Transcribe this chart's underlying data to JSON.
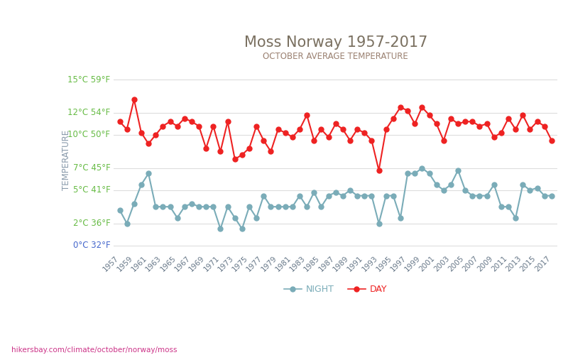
{
  "title": "Moss Norway 1957-2017",
  "subtitle": "OCTOBER AVERAGE TEMPERATURE",
  "ylabel": "TEMPERATURE",
  "background_color": "#ffffff",
  "title_color": "#7a7060",
  "subtitle_color": "#9a8070",
  "ylabel_color": "#8899aa",
  "yticks_celsius": [
    0,
    2,
    5,
    7,
    10,
    12,
    15
  ],
  "yticks_fahrenheit": [
    32,
    36,
    41,
    45,
    50,
    54,
    59
  ],
  "ytick_color_green": "#66bb44",
  "ytick_color_blue": "#4466cc",
  "grid_color": "#dddddd",
  "years": [
    1957,
    1958,
    1959,
    1960,
    1961,
    1962,
    1963,
    1964,
    1965,
    1966,
    1967,
    1968,
    1969,
    1970,
    1971,
    1972,
    1973,
    1974,
    1975,
    1976,
    1977,
    1978,
    1979,
    1980,
    1981,
    1982,
    1983,
    1984,
    1985,
    1986,
    1987,
    1988,
    1989,
    1990,
    1991,
    1992,
    1993,
    1994,
    1995,
    1996,
    1997,
    1998,
    1999,
    2000,
    2001,
    2002,
    2003,
    2004,
    2005,
    2006,
    2007,
    2008,
    2009,
    2010,
    2011,
    2012,
    2013,
    2014,
    2015,
    2016,
    2017
  ],
  "day_values": [
    11.2,
    10.5,
    13.2,
    10.2,
    9.2,
    10.0,
    10.8,
    11.2,
    10.8,
    11.5,
    11.2,
    10.8,
    8.8,
    10.8,
    8.5,
    11.2,
    7.8,
    8.2,
    8.8,
    10.8,
    9.5,
    8.5,
    10.5,
    10.2,
    9.8,
    10.5,
    11.8,
    9.5,
    10.5,
    9.8,
    11.0,
    10.5,
    9.5,
    10.5,
    10.2,
    9.5,
    6.8,
    10.5,
    11.5,
    12.5,
    12.2,
    11.0,
    12.5,
    11.8,
    11.0,
    9.5,
    11.5,
    11.0,
    11.2,
    11.2,
    10.8,
    11.0,
    9.8,
    10.2,
    11.5,
    10.5,
    11.8,
    10.5,
    11.2,
    10.8,
    9.5
  ],
  "night_values": [
    3.2,
    2.0,
    3.8,
    5.5,
    6.5,
    3.5,
    3.5,
    3.5,
    2.5,
    3.5,
    3.8,
    3.5,
    3.5,
    3.5,
    1.5,
    3.5,
    2.5,
    1.5,
    3.5,
    2.5,
    4.5,
    3.5,
    3.5,
    3.5,
    3.5,
    4.5,
    3.5,
    4.8,
    3.5,
    4.5,
    4.8,
    4.5,
    5.0,
    4.5,
    4.5,
    4.5,
    2.0,
    4.5,
    4.5,
    2.5,
    6.5,
    6.5,
    7.0,
    6.5,
    5.5,
    5.0,
    5.5,
    6.8,
    5.0,
    4.5,
    4.5,
    4.5,
    5.5,
    3.5,
    3.5,
    2.5,
    5.5,
    5.0,
    5.2,
    4.5,
    4.5
  ],
  "day_color": "#ee2222",
  "night_color": "#7aacb8",
  "line_width": 1.5,
  "marker_size_day": 5,
  "marker_size_night": 5,
  "legend_night": "NIGHT",
  "legend_day": "DAY",
  "ylim": [
    -0.5,
    16
  ],
  "xtick_color": "#667788",
  "url_color": "#cc3388",
  "url_text": "hikersbay.com/climate/october/norway/moss"
}
